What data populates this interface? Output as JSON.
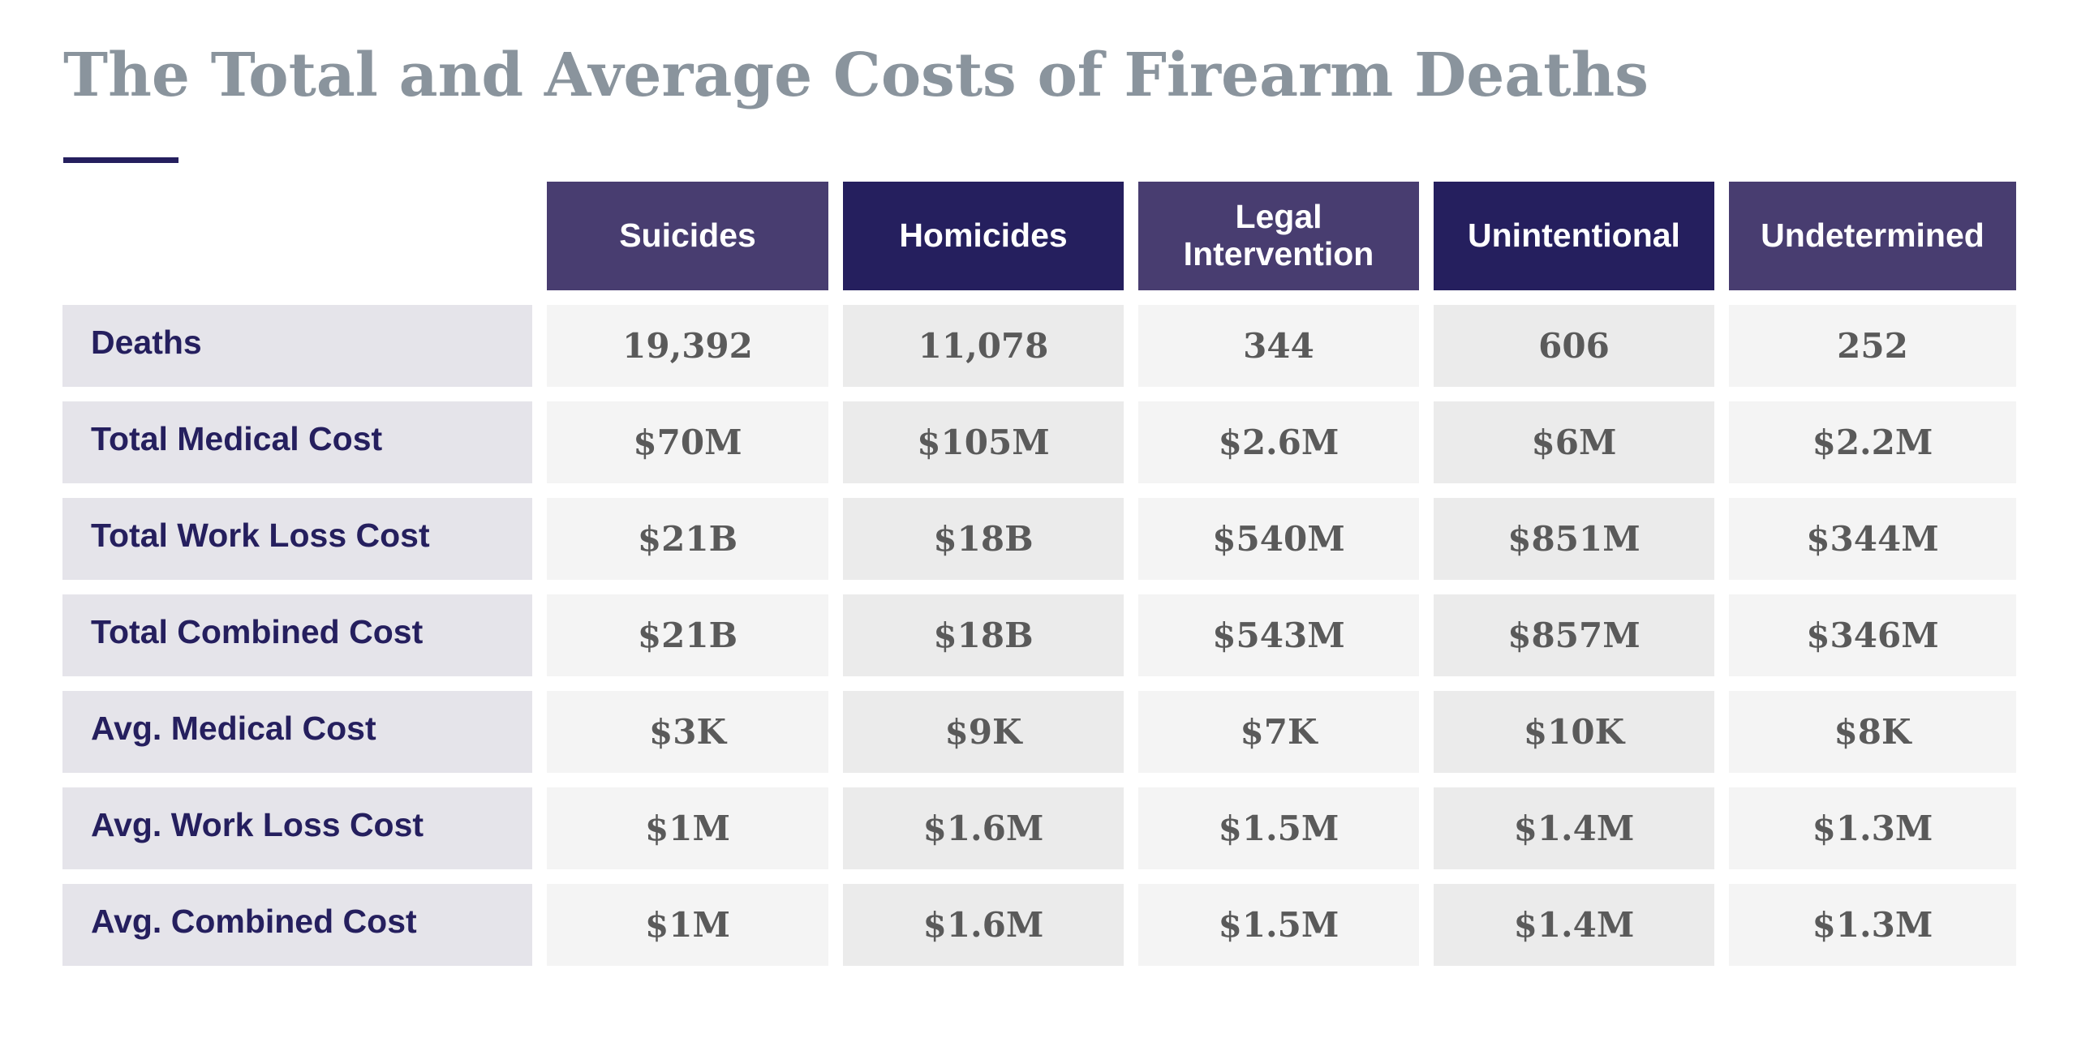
{
  "title": "The Total and Average Costs of Firearm Deaths",
  "colors": {
    "header_light": "#483d70",
    "header_dark": "#251f5e",
    "label_bg": "#e5e4ea",
    "title": "#8a949d"
  },
  "columns": [
    "Suicides",
    "Homicides",
    "Legal Intervention",
    "Unintentional",
    "Undetermined"
  ],
  "rows": [
    {
      "label": "Deaths",
      "values": [
        "19,392",
        "11,078",
        "344",
        "606",
        "252"
      ]
    },
    {
      "label": "Total Medical Cost",
      "values": [
        "$70M",
        "$105M",
        "$2.6M",
        "$6M",
        "$2.2M"
      ]
    },
    {
      "label": "Total Work Loss Cost",
      "values": [
        "$21B",
        "$18B",
        "$540M",
        "$851M",
        "$344M"
      ]
    },
    {
      "label": "Total Combined Cost",
      "values": [
        "$21B",
        "$18B",
        "$543M",
        "$857M",
        "$346M"
      ]
    },
    {
      "label": "Avg. Medical Cost",
      "values": [
        "$3K",
        "$9K",
        "$7K",
        "$10K",
        "$8K"
      ]
    },
    {
      "label": "Avg. Work Loss Cost",
      "values": [
        "$1M",
        "$1.6M",
        "$1.5M",
        "$1.4M",
        "$1.3M"
      ]
    },
    {
      "label": "Avg. Combined Cost",
      "values": [
        "$1M",
        "$1.6M",
        "$1.5M",
        "$1.4M",
        "$1.3M"
      ]
    }
  ]
}
